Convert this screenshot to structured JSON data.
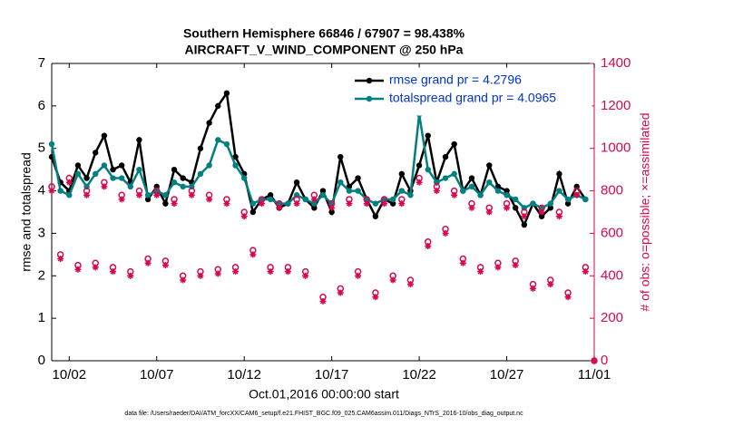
{
  "chart_data": {
    "type": "line",
    "title": [
      "Southern Hemisphere 66846 / 67907 = 98.438%",
      "AIRCRAFT_V_WIND_COMPONENT @ 250 hPa"
    ],
    "xlabel": "Oct.01,2016 00:00:00 start",
    "ylabel": "rmse and totalspread",
    "y2label": "# of obs: o=possible; ×=assimilated",
    "footnote": "data file: /Users/raeder/DAI/ATM_forcXX/CAM6_setup/f.e21.FHIST_BGC.f09_025.CAM6assim.011/Diags_NTrS_2016-10/obs_diag_output.nc",
    "xlim": [
      0,
      31
    ],
    "xticks": [
      {
        "value": 1,
        "label": "10/02"
      },
      {
        "value": 6,
        "label": "10/07"
      },
      {
        "value": 11,
        "label": "10/12"
      },
      {
        "value": 16,
        "label": "10/17"
      },
      {
        "value": 21,
        "label": "10/22"
      },
      {
        "value": 26,
        "label": "10/27"
      },
      {
        "value": 31,
        "label": "11/01"
      }
    ],
    "ylim": [
      0,
      7
    ],
    "yticks": [
      0,
      1,
      2,
      3,
      4,
      5,
      6,
      7
    ],
    "y2lim": [
      0,
      1400
    ],
    "y2ticks": [
      0,
      200,
      400,
      600,
      800,
      1000,
      1200,
      1400
    ],
    "legend": "upper right",
    "x": [
      0,
      0.5,
      1,
      1.5,
      2,
      2.5,
      3,
      3.5,
      4,
      4.5,
      5,
      5.5,
      6,
      6.5,
      7,
      7.5,
      8,
      8.5,
      9,
      9.5,
      10,
      10.5,
      11,
      11.5,
      12,
      12.5,
      13,
      13.5,
      14,
      14.5,
      15,
      15.5,
      16,
      16.5,
      17,
      17.5,
      18,
      18.5,
      19,
      19.5,
      20,
      20.5,
      21,
      21.5,
      22,
      22.5,
      23,
      23.5,
      24,
      24.5,
      25,
      25.5,
      26,
      26.5,
      27,
      27.5,
      28,
      28.5,
      29,
      29.5,
      30,
      30.5,
      31
    ],
    "series": [
      {
        "name": "rmse grand pr = 4.2796",
        "color": "#000000",
        "marker": "dot",
        "line": true,
        "values": [
          4.8,
          4.2,
          4.0,
          4.6,
          4.3,
          4.9,
          5.3,
          4.5,
          4.6,
          4.2,
          5.2,
          3.8,
          4.1,
          3.7,
          4.5,
          4.3,
          4.2,
          5.0,
          5.6,
          6.0,
          6.3,
          4.8,
          4.4,
          3.5,
          3.8,
          3.9,
          3.6,
          3.7,
          4.2,
          3.8,
          3.6,
          4.0,
          3.5,
          4.8,
          4.1,
          4.3,
          3.8,
          3.4,
          3.8,
          3.7,
          4.4,
          4.0,
          4.6,
          5.3,
          4.2,
          4.8,
          5.1,
          4.0,
          4.3,
          3.9,
          4.6,
          4.1,
          4.0,
          3.6,
          3.2,
          3.7,
          3.4,
          3.6,
          4.4,
          3.7,
          4.1,
          3.8,
          null
        ]
      },
      {
        "name": "totalspread grand pr = 4.0965",
        "color": "#008080",
        "marker": "dot",
        "line": true,
        "values": [
          5.1,
          4.0,
          3.9,
          4.4,
          4.1,
          4.4,
          4.6,
          4.3,
          4.3,
          4.1,
          4.5,
          3.9,
          4.0,
          3.9,
          4.2,
          4.1,
          4.1,
          4.4,
          4.6,
          5.2,
          5.1,
          4.6,
          4.3,
          3.7,
          3.8,
          3.8,
          3.7,
          3.7,
          3.9,
          3.8,
          3.7,
          3.9,
          3.7,
          4.2,
          4.0,
          4.0,
          3.8,
          3.7,
          3.8,
          3.8,
          4.0,
          3.9,
          5.8,
          4.5,
          4.2,
          4.3,
          4.4,
          4.0,
          4.1,
          3.9,
          4.2,
          4.0,
          3.9,
          3.8,
          3.6,
          3.7,
          3.6,
          3.7,
          4.0,
          3.8,
          3.9,
          3.8,
          null
        ]
      },
      {
        "color": "#d6084f",
        "marker": "circle-open",
        "line": false,
        "axis": "y2",
        "values": [
          820,
          500,
          860,
          450,
          800,
          460,
          840,
          440,
          780,
          420,
          800,
          480,
          800,
          470,
          760,
          400,
          800,
          420,
          780,
          430,
          760,
          440,
          700,
          520,
          760,
          440,
          740,
          440,
          760,
          420,
          780,
          300,
          740,
          340,
          760,
          420,
          760,
          320,
          760,
          400,
          760,
          380,
          860,
          560,
          820,
          620,
          800,
          480,
          740,
          440,
          720,
          460,
          740,
          470,
          700,
          360,
          720,
          380,
          700,
          320,
          800,
          440,
          0
        ]
      },
      {
        "color": "#d6084f",
        "marker": "asterisk",
        "line": false,
        "axis": "y2",
        "values": [
          800,
          480,
          840,
          430,
          780,
          440,
          820,
          420,
          760,
          400,
          780,
          460,
          780,
          450,
          740,
          380,
          780,
          400,
          760,
          410,
          740,
          420,
          680,
          500,
          740,
          420,
          720,
          420,
          740,
          400,
          760,
          280,
          720,
          320,
          740,
          400,
          740,
          300,
          740,
          380,
          740,
          360,
          840,
          540,
          800,
          600,
          780,
          460,
          720,
          420,
          700,
          440,
          720,
          450,
          680,
          340,
          700,
          360,
          680,
          300,
          780,
          420,
          0
        ]
      }
    ]
  }
}
